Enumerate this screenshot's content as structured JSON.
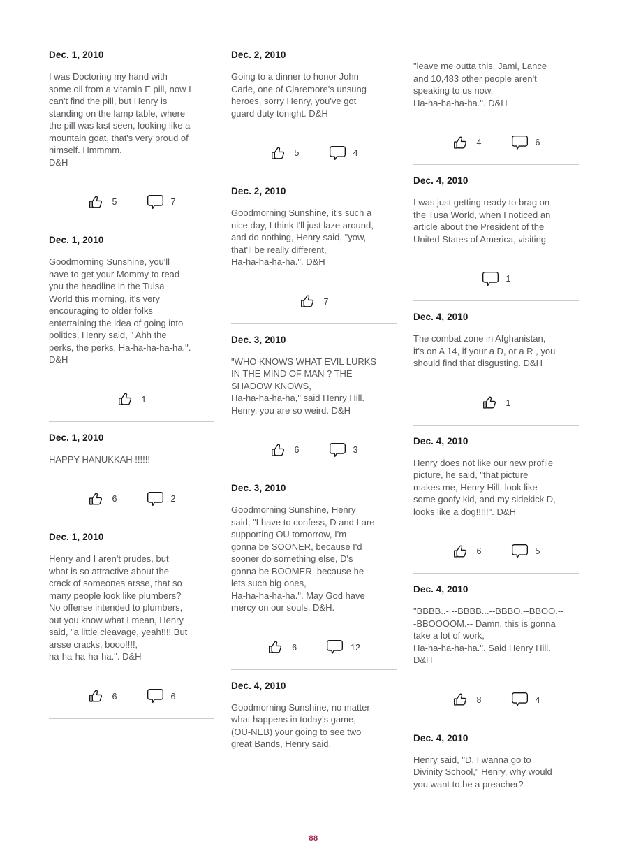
{
  "page_number": {
    "label": "88"
  },
  "colors": {
    "heading": "#1a1a1a",
    "body": "#57585c",
    "divider": "#cccccc",
    "page_number": "#a32347",
    "icon_stroke": "#161616"
  },
  "icons": {
    "like": "thumbs-up",
    "comment": "speech-bubble"
  },
  "columns": [
    {
      "posts": [
        {
          "date": "Dec. 1, 2010",
          "body": "I was Doctoring my hand with\nsome oil from a vitamin E pill, now I\ncan't find the pill, but Henry is\nstanding on the lamp table, where\nthe pill was last seen, looking like a\nmountain goat, that's very proud of\nhimself. Hmmmm.\nD&H",
          "likes": "5",
          "comments": "7"
        },
        {
          "date": "Dec. 1, 2010",
          "body": "Goodmorning Sunshine, you'll\nhave to get your Mommy to read\nyou the headline in the Tulsa\nWorld this morning, it's very\nencouraging to older folks\nentertaining the idea of going into\npolitics, Henry said, \" Ahh the\nperks, the perks, Ha-ha-ha-ha-ha.\".\nD&H",
          "likes": "1",
          "comments": null
        },
        {
          "date": "Dec. 1, 2010",
          "body": "HAPPY HANUKKAH !!!!!!",
          "likes": "6",
          "comments": "2"
        },
        {
          "date": "Dec. 1, 2010",
          "body": "Henry and I aren't prudes, but\nwhat is so attractive about the\ncrack of someones arsse, that so\nmany people look like plumbers?\nNo offense intended to plumbers,\nbut you know what I mean, Henry\nsaid, \"a little cleavage, yeah!!!! But\narsse cracks, booo!!!!,\nha-ha-ha-ha-ha.\". D&H",
          "likes": "6",
          "comments": "6"
        }
      ]
    },
    {
      "posts": [
        {
          "date": "Dec. 2, 2010",
          "body": "Going to a dinner to honor John\nCarle, one of Claremore's unsung\nheroes, sorry Henry, you've got\nguard duty tonight. D&H",
          "likes": "5",
          "comments": "4"
        },
        {
          "date": "Dec. 2, 2010",
          "body": "Goodmorning Sunshine, it's such a\nnice day, I think I'll just laze around,\nand do nothing, Henry said, \"yow,\nthat'll be really different,\nHa-ha-ha-ha-ha.\". D&H",
          "likes": "7",
          "comments": null
        },
        {
          "date": "Dec. 3, 2010",
          "body": "\"WHO KNOWS WHAT EVIL LURKS\nIN THE MIND OF MAN ? THE\nSHADOW KNOWS,\nHa-ha-ha-ha-ha,\" said Henry Hill.\nHenry, you are so weird. D&H",
          "likes": "6",
          "comments": "3"
        },
        {
          "date": "Dec. 3, 2010",
          "body": "Goodmorning Sunshine, Henry\nsaid, \"I have to confess, D and I are\nsupporting OU tomorrow, I'm\ngonna be SOONER, because I'd\nsooner do something else, D's\ngonna be BOOMER, because he\nlets such big ones,\nHa-ha-ha-ha-ha.\". May God have\nmercy on our souls. D&H.",
          "likes": "6",
          "comments": "12"
        },
        {
          "date": "Dec. 4, 2010",
          "body": "Goodmorning Sunshine, no matter\nwhat happens in today's game,\n(OU-NEB) your going to see two\ngreat Bands, Henry said,",
          "likes": null,
          "comments": null
        }
      ]
    },
    {
      "posts": [
        {
          "date": null,
          "body": "\"leave me outta this, Jami, Lance\nand 10,483 other people aren't\nspeaking to us now,\nHa-ha-ha-ha-ha.\". D&H",
          "likes": "4",
          "comments": "6"
        },
        {
          "date": "Dec. 4, 2010",
          "body": "I was just getting ready to brag on\nthe Tusa World, when I noticed an\narticle about the President of the\nUnited States of America, visiting",
          "likes": null,
          "comments": "1"
        },
        {
          "date": "Dec. 4, 2010",
          "body": "The combat zone in Afghanistan,\nit's on A 14, if your a D, or a R , you\nshould find that disgusting. D&H",
          "likes": "1",
          "comments": null
        },
        {
          "date": "Dec. 4, 2010",
          "body": "Henry does not like our new profile\npicture, he said, \"that picture\nmakes me, Henry Hill, look like\nsome goofy kid, and my sidekick D,\nlooks like a dog!!!!!\". D&H",
          "likes": "6",
          "comments": "5"
        },
        {
          "date": "Dec. 4, 2010",
          "body": "\"BBBB..- --BBBB...--BBBO.--BBOO.--\n-BBOOOOM.-- Damn, this is gonna\ntake a lot of work,\nHa-ha-ha-ha-ha.\". Said Henry Hill.\nD&H",
          "likes": "8",
          "comments": "4"
        },
        {
          "date": "Dec. 4, 2010",
          "body": "Henry said, \"D, I wanna go to\nDivinity School,\" Henry, why would\nyou want to be a preacher?",
          "likes": null,
          "comments": null
        }
      ]
    }
  ]
}
